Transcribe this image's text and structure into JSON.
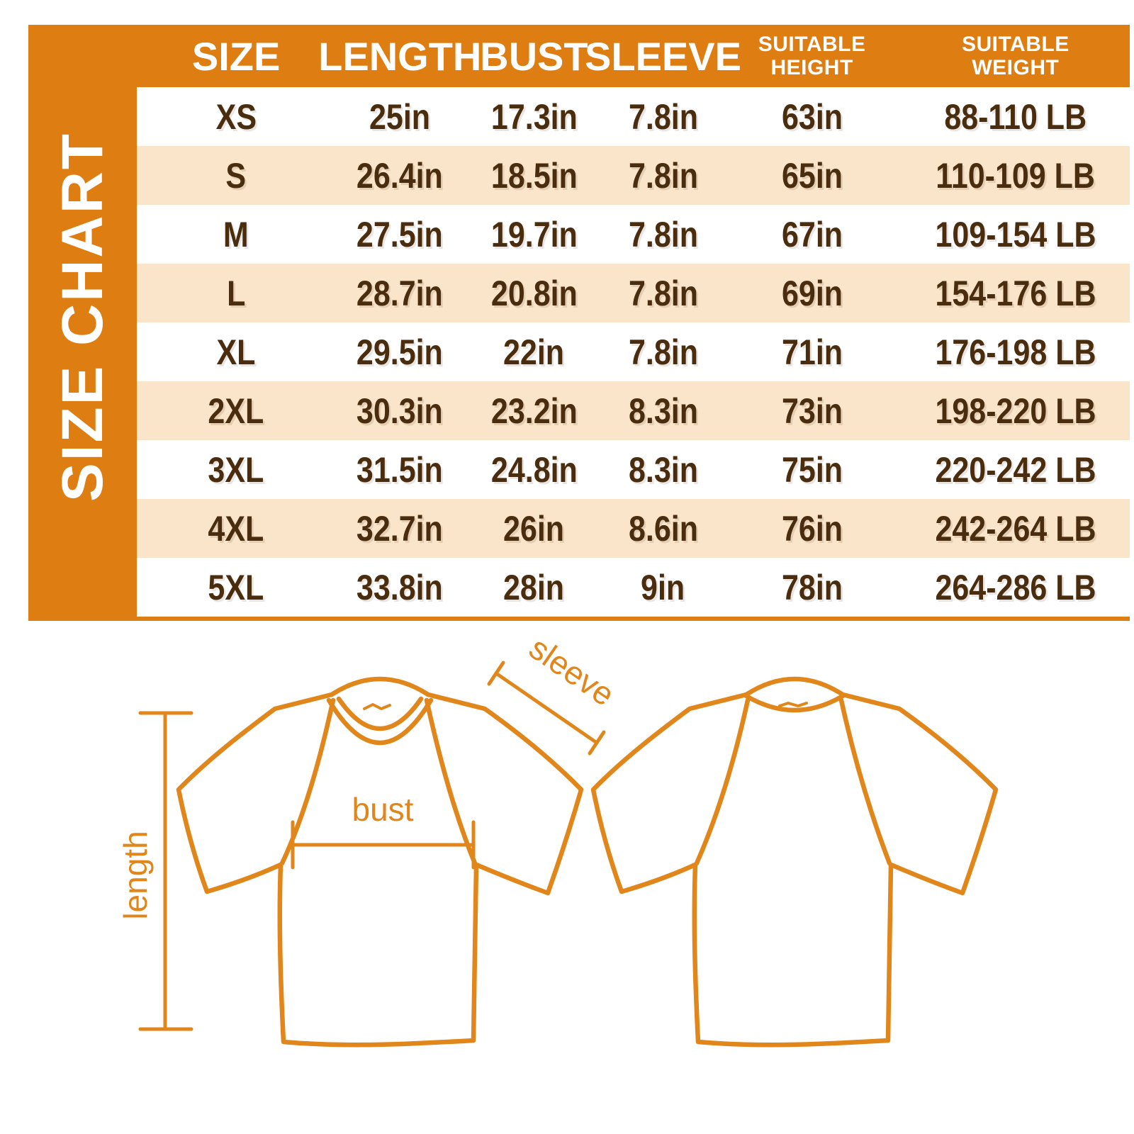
{
  "title": "SIZE CHART",
  "table": {
    "columns": [
      "SIZE",
      "LENGTH",
      "BUST",
      "SLEEVE",
      "SUITABLE\nHEIGHT",
      "SUITABLE\nWEIGHT"
    ],
    "rows": [
      {
        "size": "XS",
        "length": "25in",
        "bust": "17.3in",
        "sleeve": "7.8in",
        "suitable_height": "63in",
        "suitable_weight": "88-110 LB"
      },
      {
        "size": "S",
        "length": "26.4in",
        "bust": "18.5in",
        "sleeve": "7.8in",
        "suitable_height": "65in",
        "suitable_weight": "110-109 LB"
      },
      {
        "size": "M",
        "length": "27.5in",
        "bust": "19.7in",
        "sleeve": "7.8in",
        "suitable_height": "67in",
        "suitable_weight": "109-154 LB"
      },
      {
        "size": "L",
        "length": "28.7in",
        "bust": "20.8in",
        "sleeve": "7.8in",
        "suitable_height": "69in",
        "suitable_weight": "154-176 LB"
      },
      {
        "size": "XL",
        "length": "29.5in",
        "bust": "22in",
        "sleeve": "7.8in",
        "suitable_height": "71in",
        "suitable_weight": "176-198 LB"
      },
      {
        "size": "2XL",
        "length": "30.3in",
        "bust": "23.2in",
        "sleeve": "8.3in",
        "suitable_height": "73in",
        "suitable_weight": "198-220 LB"
      },
      {
        "size": "3XL",
        "length": "31.5in",
        "bust": "24.8in",
        "sleeve": "8.3in",
        "suitable_height": "75in",
        "suitable_weight": "220-242 LB"
      },
      {
        "size": "4XL",
        "length": "32.7in",
        "bust": "26in",
        "sleeve": "8.6in",
        "suitable_height": "76in",
        "suitable_weight": "242-264 LB"
      },
      {
        "size": "5XL",
        "length": "33.8in",
        "bust": "28in",
        "sleeve": "9in",
        "suitable_height": "78in",
        "suitable_weight": "264-286 LB"
      }
    ]
  },
  "diagram": {
    "labels": {
      "sleeve": "sleeve",
      "bust": "bust",
      "length": "length"
    }
  },
  "colors": {
    "orange": "#DD7D12",
    "peach": "#FAE5CB",
    "brown": "#4A2D0E",
    "line_orange": "#E0861B",
    "white": "#FFFFFF"
  }
}
